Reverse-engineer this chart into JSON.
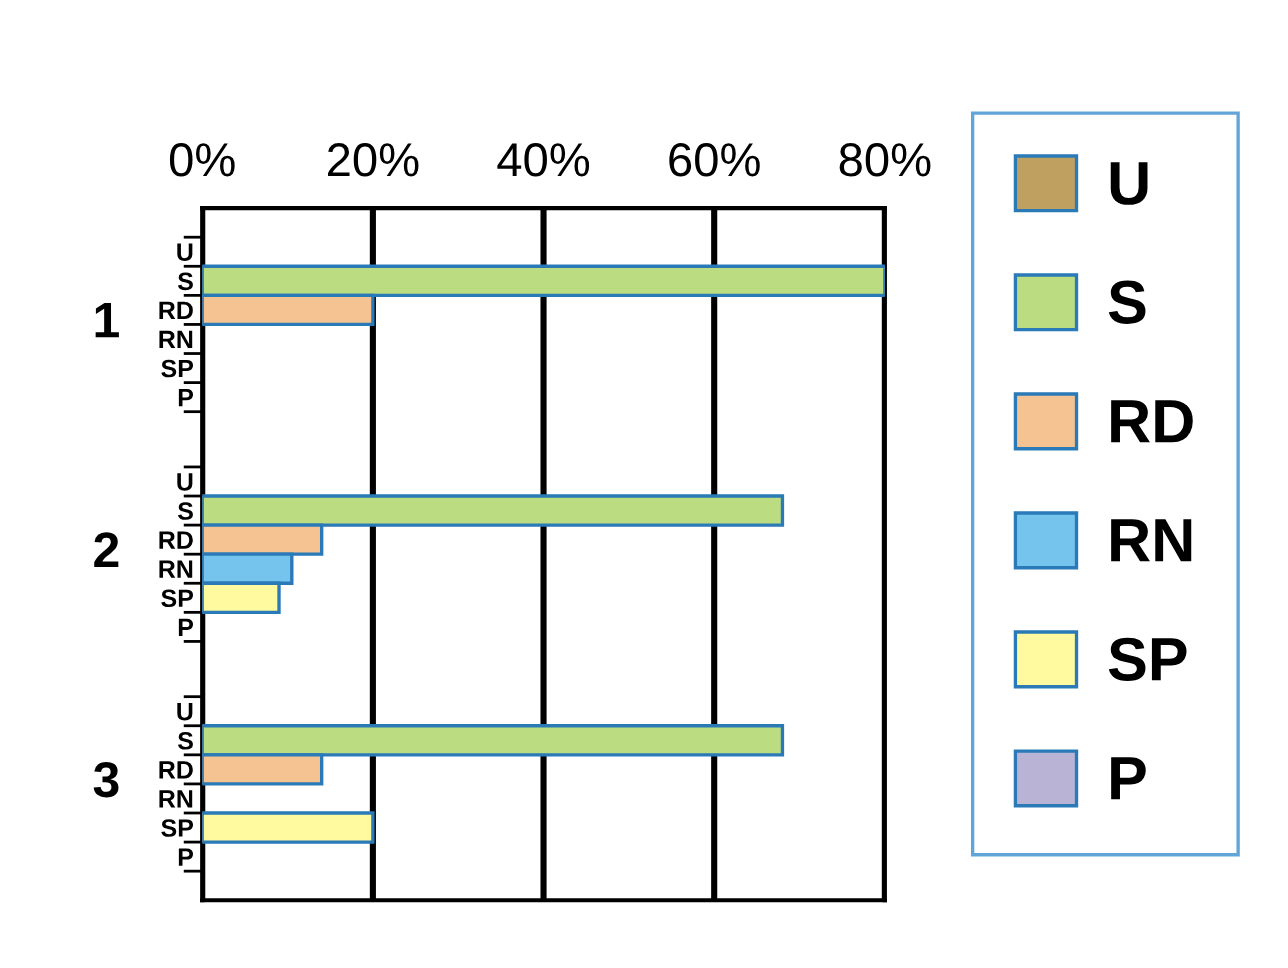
{
  "chart_data": {
    "type": "bar",
    "orientation": "horizontal",
    "categories": [
      "U",
      "S",
      "RD",
      "RN",
      "SP",
      "P",
      "U",
      "S",
      "RD",
      "RN",
      "SP",
      "P",
      "U",
      "S",
      "RD",
      "RN",
      "SP",
      "P"
    ],
    "series": [
      {
        "name": "U",
        "color": "#bfa060",
        "values": [
          null,
          null,
          null,
          null,
          null,
          null,
          null,
          null,
          null,
          null,
          null,
          null,
          null,
          null,
          null,
          null,
          null,
          null
        ]
      },
      {
        "name": "S",
        "color": "#bcdc82",
        "values": [
          null,
          80,
          null,
          null,
          null,
          null,
          null,
          68,
          null,
          null,
          null,
          null,
          null,
          68,
          null,
          null,
          null,
          null
        ]
      },
      {
        "name": "RD",
        "color": "#f5c391",
        "values": [
          null,
          null,
          20,
          null,
          null,
          null,
          null,
          null,
          14,
          null,
          null,
          null,
          null,
          null,
          14,
          null,
          null,
          null
        ]
      },
      {
        "name": "RN",
        "color": "#74c4ee",
        "values": [
          null,
          null,
          null,
          null,
          null,
          null,
          null,
          null,
          null,
          10.5,
          null,
          null,
          null,
          null,
          null,
          null,
          null,
          null
        ]
      },
      {
        "name": "SP",
        "color": "#fff9a0",
        "values": [
          null,
          null,
          null,
          null,
          null,
          null,
          null,
          null,
          null,
          null,
          9,
          null,
          null,
          null,
          null,
          null,
          20,
          null
        ]
      },
      {
        "name": "P",
        "color": "#b9b4d6",
        "values": [
          null,
          null,
          null,
          null,
          null,
          null,
          null,
          null,
          null,
          null,
          null,
          null,
          null,
          null,
          null,
          null,
          null,
          null
        ]
      }
    ],
    "xlim": [
      0,
      80
    ],
    "xticks": [
      {
        "value": 0,
        "label": "0%"
      },
      {
        "value": 20,
        "label": "20%"
      },
      {
        "value": 40,
        "label": "40%"
      },
      {
        "value": 60,
        "label": "60%"
      },
      {
        "value": 80,
        "label": "80%"
      }
    ],
    "annotations": [
      "1",
      "2",
      "3"
    ],
    "grid": "x",
    "legend": "right"
  }
}
